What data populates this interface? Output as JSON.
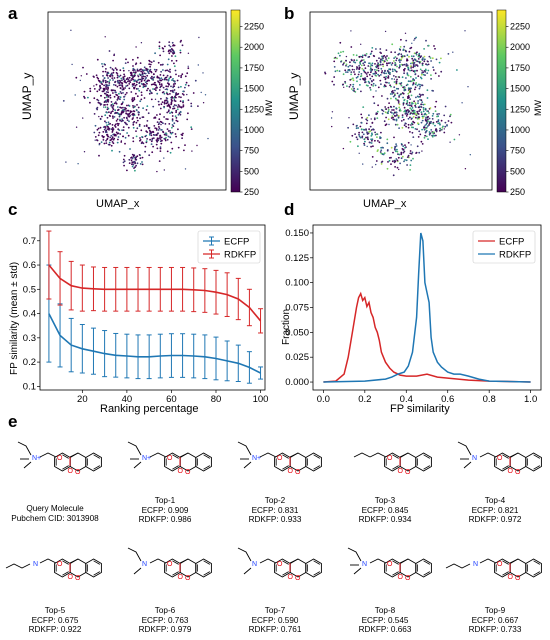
{
  "panels": {
    "a": "a",
    "b": "b",
    "c": "c",
    "d": "d",
    "e": "e"
  },
  "chart_data": [
    {
      "panel": "a",
      "type": "scatter",
      "xlabel": "UMAP_x",
      "ylabel": "UMAP_y",
      "colorbar": {
        "label": "MW",
        "ticks": [
          250,
          500,
          750,
          1000,
          1250,
          1500,
          1750,
          2000,
          2250
        ],
        "range": [
          250,
          2450
        ],
        "colormap": [
          "#440154",
          "#3b528b",
          "#21918c",
          "#5ec962",
          "#fde725"
        ]
      },
      "clusters": [
        {
          "cx": 5.1,
          "cy": 6.3,
          "sx": 0.9,
          "sy": 0.5,
          "n": 260
        },
        {
          "cx": 3.3,
          "cy": 5.6,
          "sx": 0.6,
          "sy": 0.7,
          "n": 180
        },
        {
          "cx": 6.9,
          "cy": 5.0,
          "sx": 0.55,
          "sy": 1.0,
          "n": 200
        },
        {
          "cx": 4.3,
          "cy": 4.3,
          "sx": 0.6,
          "sy": 0.4,
          "n": 140
        },
        {
          "cx": 6.0,
          "cy": 3.0,
          "sx": 0.6,
          "sy": 0.4,
          "n": 110
        },
        {
          "cx": 3.5,
          "cy": 3.1,
          "sx": 0.5,
          "sy": 0.4,
          "n": 90
        },
        {
          "cx": 4.9,
          "cy": 1.7,
          "sx": 0.25,
          "sy": 0.25,
          "n": 45
        },
        {
          "cx": 6.9,
          "cy": 7.9,
          "sx": 0.3,
          "sy": 0.25,
          "n": 40
        }
      ]
    },
    {
      "panel": "b",
      "type": "scatter",
      "xlabel": "UMAP_x",
      "ylabel": "UMAP_y",
      "colorbar": {
        "label": "MW",
        "ticks": [
          250,
          500,
          750,
          1000,
          1250,
          1500,
          1750,
          2000,
          2250
        ],
        "range": [
          250,
          2450
        ],
        "colormap": [
          "#440154",
          "#3b528b",
          "#21918c",
          "#5ec962",
          "#fde725"
        ]
      },
      "clusters": [
        {
          "cx": 3.0,
          "cy": 6.7,
          "sx": 0.9,
          "sy": 0.55,
          "n": 230
        },
        {
          "cx": 5.5,
          "cy": 7.2,
          "sx": 1.0,
          "sy": 0.5,
          "n": 220
        },
        {
          "cx": 5.4,
          "cy": 5.6,
          "sx": 0.5,
          "sy": 0.4,
          "n": 110
        },
        {
          "cx": 5.2,
          "cy": 4.4,
          "sx": 0.9,
          "sy": 0.4,
          "n": 180
        },
        {
          "cx": 6.5,
          "cy": 3.6,
          "sx": 0.6,
          "sy": 0.45,
          "n": 120
        },
        {
          "cx": 3.1,
          "cy": 3.2,
          "sx": 0.45,
          "sy": 0.4,
          "n": 80
        },
        {
          "cx": 4.8,
          "cy": 2.0,
          "sx": 0.6,
          "sy": 0.4,
          "n": 90
        }
      ]
    },
    {
      "panel": "c",
      "type": "line",
      "xlabel": "Ranking percentage",
      "ylabel": "FP similarity (mean ± std)",
      "xlim": [
        1,
        102
      ],
      "ylim": [
        0.085,
        0.765
      ],
      "xticks": [
        20,
        40,
        60,
        80,
        100
      ],
      "yticks": [
        0.1,
        0.2,
        0.3,
        0.4,
        0.5,
        0.6,
        0.7
      ],
      "legend": "top-right",
      "x": [
        5,
        10,
        15,
        20,
        25,
        30,
        35,
        40,
        45,
        50,
        55,
        60,
        65,
        70,
        75,
        80,
        85,
        90,
        95,
        100
      ],
      "series": [
        {
          "name": "ECFP",
          "color": "#1f77b4",
          "mean": [
            0.4,
            0.31,
            0.27,
            0.255,
            0.245,
            0.235,
            0.228,
            0.225,
            0.222,
            0.222,
            0.225,
            0.227,
            0.227,
            0.225,
            0.222,
            0.215,
            0.205,
            0.195,
            0.178,
            0.155
          ],
          "std": [
            0.2,
            0.13,
            0.11,
            0.1,
            0.095,
            0.095,
            0.09,
            0.09,
            0.09,
            0.09,
            0.09,
            0.09,
            0.09,
            0.09,
            0.09,
            0.088,
            0.082,
            0.075,
            0.065,
            0.025
          ]
        },
        {
          "name": "RDKFP",
          "color": "#d62728",
          "mean": [
            0.6,
            0.545,
            0.515,
            0.505,
            0.502,
            0.5,
            0.5,
            0.5,
            0.5,
            0.5,
            0.5,
            0.5,
            0.5,
            0.498,
            0.495,
            0.488,
            0.478,
            0.46,
            0.425,
            0.37
          ],
          "std": [
            0.14,
            0.11,
            0.1,
            0.095,
            0.09,
            0.09,
            0.09,
            0.09,
            0.09,
            0.09,
            0.09,
            0.09,
            0.09,
            0.09,
            0.09,
            0.09,
            0.09,
            0.085,
            0.075,
            0.05
          ]
        }
      ]
    },
    {
      "panel": "d",
      "type": "line",
      "xlabel": "FP similarity",
      "ylabel": "Fraction",
      "xlim": [
        -0.05,
        1.05
      ],
      "ylim": [
        -0.008,
        0.158
      ],
      "xticks": [
        0.0,
        0.2,
        0.4,
        0.6,
        0.8,
        1.0
      ],
      "yticks": [
        0.0,
        0.025,
        0.05,
        0.075,
        0.1,
        0.125,
        0.15
      ],
      "ytick_labels": [
        "0.000",
        "0.025",
        "0.050",
        "0.075",
        "0.100",
        "0.125",
        "0.150"
      ],
      "xtick_labels": [
        "0.0",
        "0.2",
        "0.4",
        "0.6",
        "0.8",
        "1.0"
      ],
      "legend": "top-right",
      "series": [
        {
          "name": "ECFP",
          "color": "#d62728",
          "x": [
            0.0,
            0.06,
            0.1,
            0.12,
            0.14,
            0.16,
            0.17,
            0.18,
            0.19,
            0.2,
            0.21,
            0.22,
            0.23,
            0.24,
            0.25,
            0.26,
            0.27,
            0.28,
            0.3,
            0.32,
            0.34,
            0.37,
            0.4,
            0.45,
            0.5,
            0.55,
            0.6,
            0.7,
            0.8,
            1.0
          ],
          "y": [
            0.0,
            0.001,
            0.008,
            0.025,
            0.05,
            0.075,
            0.085,
            0.089,
            0.082,
            0.085,
            0.076,
            0.08,
            0.07,
            0.065,
            0.055,
            0.05,
            0.042,
            0.03,
            0.02,
            0.014,
            0.01,
            0.007,
            0.006,
            0.006,
            0.008,
            0.005,
            0.004,
            0.002,
            0.001,
            0.0
          ]
        },
        {
          "name": "RDKFP",
          "color": "#1f77b4",
          "x": [
            0.0,
            0.2,
            0.3,
            0.33,
            0.36,
            0.39,
            0.41,
            0.43,
            0.45,
            0.46,
            0.47,
            0.48,
            0.49,
            0.5,
            0.51,
            0.52,
            0.53,
            0.55,
            0.57,
            0.6,
            0.63,
            0.66,
            0.7,
            0.75,
            0.8,
            1.0
          ],
          "y": [
            0.0,
            0.001,
            0.003,
            0.005,
            0.008,
            0.01,
            0.016,
            0.03,
            0.065,
            0.11,
            0.15,
            0.142,
            0.1,
            0.09,
            0.08,
            0.045,
            0.03,
            0.02,
            0.015,
            0.01,
            0.008,
            0.008,
            0.006,
            0.003,
            0.001,
            0.0
          ]
        }
      ]
    }
  ],
  "molecules": [
    {
      "id": "query",
      "lines": [
        "Query Molecule",
        "Pubchem CID: 3013908"
      ]
    },
    {
      "id": "top-1",
      "lines": [
        "Top-1",
        "ECFP: 0.909",
        "RDKFP: 0.986"
      ]
    },
    {
      "id": "top-2",
      "lines": [
        "Top-2",
        "ECFP: 0.831",
        "RDKFP: 0.933"
      ]
    },
    {
      "id": "top-3",
      "lines": [
        "Top-3",
        "ECFP: 0.845",
        "RDKFP: 0.934"
      ]
    },
    {
      "id": "top-4",
      "lines": [
        "Top-4",
        "ECFP: 0.821",
        "RDKFP: 0.972"
      ]
    },
    {
      "id": "top-5",
      "lines": [
        "Top-5",
        "ECFP: 0.675",
        "RDKFP: 0.922"
      ]
    },
    {
      "id": "top-6",
      "lines": [
        "Top-6",
        "ECFP: 0.763",
        "RDKFP: 0.979"
      ]
    },
    {
      "id": "top-7",
      "lines": [
        "Top-7",
        "ECFP: 0.590",
        "RDKFP: 0.761"
      ]
    },
    {
      "id": "top-8",
      "lines": [
        "Top-8",
        "ECFP: 0.545",
        "RDKFP: 0.663"
      ]
    },
    {
      "id": "top-9",
      "lines": [
        "Top-9",
        "ECFP: 0.667",
        "RDKFP: 0.733"
      ]
    }
  ],
  "atom_labels": {
    "nitrogen": "N",
    "oxygen": "O",
    "nitrogen_plus": "N+"
  }
}
